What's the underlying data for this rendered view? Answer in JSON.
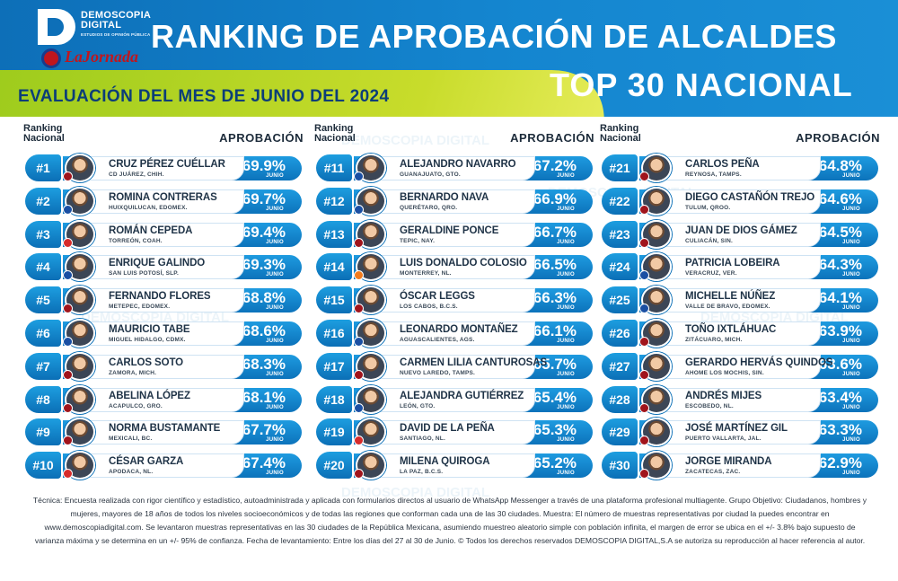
{
  "header": {
    "brand_name": "DEMOSCOPIA\nDIGITAL",
    "brand_tag": "ESTUDIOS DE OPINIÓN PÚBLICA",
    "partner": "LaJornada",
    "title": "RANKING DE APROBACIÓN DE ALCALDES",
    "subtitle": "TOP 30 NACIONAL",
    "evaluation": "EVALUACIÓN DEL MES DE JUNIO DEL 2024",
    "colors": {
      "blue": "#0d6fb8",
      "green": "#9ccb1c",
      "navy": "#0c3e78"
    }
  },
  "labels": {
    "rank_header": "Ranking\nNacional",
    "approval_header": "APROBACIÓN",
    "month": "JUNIO"
  },
  "columns": [
    {
      "rows": [
        {
          "rank": "#1",
          "name": "CRUZ PÉREZ CUÉLLAR",
          "city": "CD JUÁREZ, CHIH.",
          "pct": "69.9%",
          "party": "morena"
        },
        {
          "rank": "#2",
          "name": "ROMINA CONTRERAS",
          "city": "HUIXQUILUCAN, EDOMEX.",
          "pct": "69.7%",
          "party": "pan"
        },
        {
          "rank": "#3",
          "name": "ROMÁN CEPEDA",
          "city": "TORREÓN, COAH.",
          "pct": "69.4%",
          "party": "pri"
        },
        {
          "rank": "#4",
          "name": "ENRIQUE GALINDO",
          "city": "SAN LUIS POTOSÍ, SLP.",
          "pct": "69.3%",
          "party": "pan"
        },
        {
          "rank": "#5",
          "name": "FERNANDO FLORES",
          "city": "METEPEC, EDOMEX.",
          "pct": "68.8%",
          "party": "morena"
        },
        {
          "rank": "#6",
          "name": "MAURICIO TABE",
          "city": "MIGUEL HIDALGO, CDMX.",
          "pct": "68.6%",
          "party": "pan"
        },
        {
          "rank": "#7",
          "name": "CARLOS SOTO",
          "city": "ZAMORA, MICH.",
          "pct": "68.3%",
          "party": "morena"
        },
        {
          "rank": "#8",
          "name": "ABELINA LÓPEZ",
          "city": "ACAPULCO, GRO.",
          "pct": "68.1%",
          "party": "morena"
        },
        {
          "rank": "#9",
          "name": "NORMA BUSTAMANTE",
          "city": "MEXICALI, BC.",
          "pct": "67.7%",
          "party": "morena"
        },
        {
          "rank": "#10",
          "name": "CÉSAR GARZA",
          "city": "APODACA, NL.",
          "pct": "67.4%",
          "party": "pri"
        }
      ]
    },
    {
      "rows": [
        {
          "rank": "#11",
          "name": "ALEJANDRO NAVARRO",
          "city": "GUANAJUATO, GTO.",
          "pct": "67.2%",
          "party": "pan"
        },
        {
          "rank": "#12",
          "name": "BERNARDO NAVA",
          "city": "QUERÉTARO, QRO.",
          "pct": "66.9%",
          "party": "pan"
        },
        {
          "rank": "#13",
          "name": "GERALDINE PONCE",
          "city": "TEPIC, NAY.",
          "pct": "66.7%",
          "party": "morena"
        },
        {
          "rank": "#14",
          "name": "LUIS DONALDO COLOSIO",
          "city": "MONTERREY, NL.",
          "pct": "66.5%",
          "party": "mc"
        },
        {
          "rank": "#15",
          "name": "ÓSCAR LEGGS",
          "city": "LOS CABOS, B.C.S.",
          "pct": "66.3%",
          "party": "morena"
        },
        {
          "rank": "#16",
          "name": "LEONARDO MONTAÑEZ",
          "city": "AGUASCALIENTES, AGS.",
          "pct": "66.1%",
          "party": "pan"
        },
        {
          "rank": "#17",
          "name": "CARMEN LILIA CANTUROSAS",
          "city": "NUEVO LAREDO, TAMPS.",
          "pct": "65.7%",
          "party": "morena"
        },
        {
          "rank": "#18",
          "name": "ALEJANDRA GUTIÉRREZ",
          "city": "LEÓN, GTO.",
          "pct": "65.4%",
          "party": "pan"
        },
        {
          "rank": "#19",
          "name": "DAVID DE LA PEÑA",
          "city": "SANTIAGO, NL.",
          "pct": "65.3%",
          "party": "pri"
        },
        {
          "rank": "#20",
          "name": "MILENA QUIROGA",
          "city": "LA PAZ, B.C.S.",
          "pct": "65.2%",
          "party": "morena"
        }
      ]
    },
    {
      "rows": [
        {
          "rank": "#21",
          "name": "CARLOS PEÑA",
          "city": "REYNOSA, TAMPS.",
          "pct": "64.8%",
          "party": "morena"
        },
        {
          "rank": "#22",
          "name": "DIEGO CASTAÑÓN TREJO",
          "city": "TULUM, QROO.",
          "pct": "64.6%",
          "party": "morena"
        },
        {
          "rank": "#23",
          "name": "JUAN DE DIOS GÁMEZ",
          "city": "CULIACÁN, SIN.",
          "pct": "64.5%",
          "party": "morena"
        },
        {
          "rank": "#24",
          "name": "PATRICIA LOBEIRA",
          "city": "VERACRUZ, VER.",
          "pct": "64.3%",
          "party": "pan"
        },
        {
          "rank": "#25",
          "name": "MICHELLE NÚÑEZ",
          "city": "VALLE DE BRAVO, EDOMEX.",
          "pct": "64.1%",
          "party": "pan"
        },
        {
          "rank": "#26",
          "name": "TOÑO IXTLÁHUAC",
          "city": "ZITÁCUARO, MICH.",
          "pct": "63.9%",
          "party": "morena"
        },
        {
          "rank": "#27",
          "name": "GERARDO HERVÁS QUINDOS",
          "city": "AHOME LOS MOCHIS, SIN.",
          "pct": "63.6%",
          "party": "morena"
        },
        {
          "rank": "#28",
          "name": "ANDRÉS MIJES",
          "city": "ESCOBEDO, NL.",
          "pct": "63.4%",
          "party": "morena"
        },
        {
          "rank": "#29",
          "name": "JOSÉ MARTÍNEZ GIL",
          "city": "PUERTO VALLARTA, JAL.",
          "pct": "63.3%",
          "party": "morena"
        },
        {
          "rank": "#30",
          "name": "JORGE MIRANDA",
          "city": "ZACATECAS, ZAC.",
          "pct": "62.9%",
          "party": "morena"
        }
      ]
    }
  ],
  "footer": {
    "text": "Técnica: Encuesta realizada con rigor científico y estadístico, autoadministrada y aplicada con formularios directos al usuario de WhatsApp Messenger a través de una plataforma profesional multiagente. Grupo Objetivo: Ciudadanos, hombres y mujeres, mayores de 18 años de todos los niveles socioeconómicos y de todas las regiones que conforman cada una de las 30 ciudades. Muestra: El número de muestras representativas por ciudad la puedes encontrar en www.demoscopiadigital.com. Se levantaron muestras representativas en las 30 ciudades de la República Mexicana, asumiendo muestreo aleatorio simple con población infinita, el margen de error se ubica en el +/- 3.8% bajo supuesto de varianza máxima y se determina en un +/- 95% de confianza. Fecha de levantamiento: Entre los días del 27 al 30 de Junio. © Todos los derechos reservados DEMOSCOPIA DIGITAL,S.A se autoriza su reproducción al hacer referencia al autor."
  },
  "watermark": "DEMOSCOPIA DIGITAL"
}
